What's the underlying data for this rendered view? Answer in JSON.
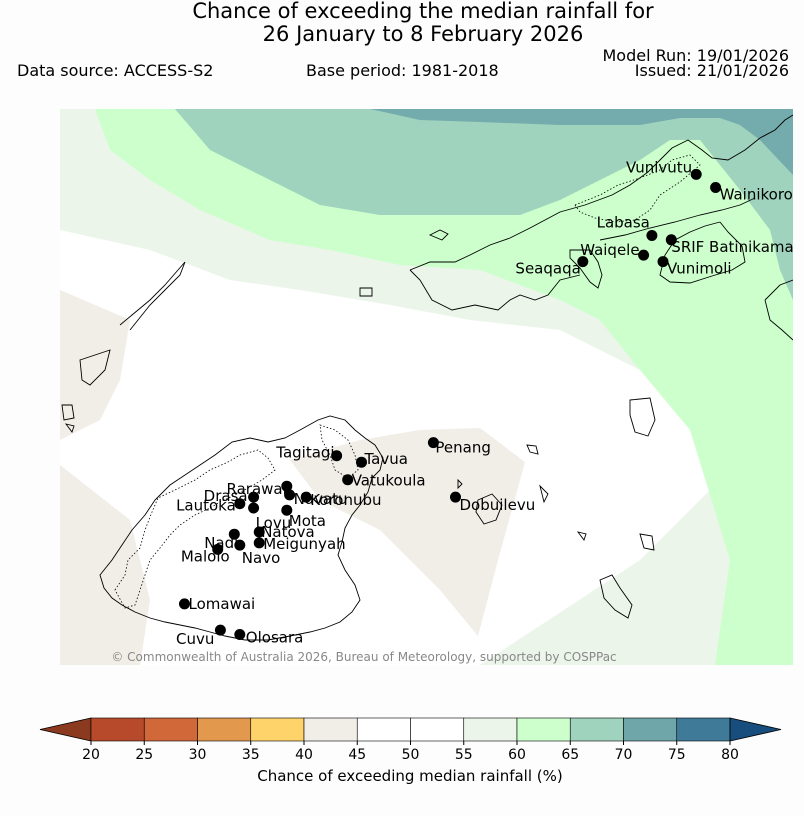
{
  "title": {
    "line1": "Chance of exceeding the median rainfall for",
    "line2": "26 January to 8 February 2026"
  },
  "meta": {
    "data_source": "Data source: ACCESS-S2",
    "base_period": "Base period: 1981-2018",
    "model_run": "Model Run: 19/01/2026",
    "issued": "Issued: 21/01/2026"
  },
  "map": {
    "copyright": "© Commonwealth of Australia 2026, Bureau of Meteorology, supported by COSPPac",
    "places": [
      {
        "name": "Vunivutu",
        "lon": 179.55,
        "lat": -16.1
      },
      {
        "name": "Wainikoro",
        "lon": 179.62,
        "lat": -16.16
      },
      {
        "name": "Labasa",
        "lon": 179.39,
        "lat": -16.38
      },
      {
        "name": "SRIF Batinikama",
        "lon": 179.46,
        "lat": -16.4
      },
      {
        "name": "Waiqele",
        "lon": 179.36,
        "lat": -16.47
      },
      {
        "name": "Vunimoli",
        "lon": 179.43,
        "lat": -16.5
      },
      {
        "name": "Seaqaqa",
        "lon": 179.14,
        "lat": -16.5
      },
      {
        "name": "Tagitagi",
        "lon": 178.25,
        "lat": -17.39
      },
      {
        "name": "Tavua",
        "lon": 178.34,
        "lat": -17.42
      },
      {
        "name": "Penang",
        "lon": 178.6,
        "lat": -17.33
      },
      {
        "name": "Vatukoula",
        "lon": 178.29,
        "lat": -17.5
      },
      {
        "name": "Rarawai",
        "lon": 178.07,
        "lat": -17.53
      },
      {
        "name": "Navatu",
        "lon": 178.08,
        "lat": -17.57
      },
      {
        "name": "Drasa",
        "lon": 177.95,
        "lat": -17.58
      },
      {
        "name": "Koronubu",
        "lon": 178.14,
        "lat": -17.58
      },
      {
        "name": "Dobuilevu",
        "lon": 178.68,
        "lat": -17.58
      },
      {
        "name": "Lautoka",
        "lon": 177.9,
        "lat": -17.61
      },
      {
        "name": "Lovu",
        "lon": 177.95,
        "lat": -17.63
      },
      {
        "name": "Mota",
        "lon": 178.07,
        "lat": -17.64
      },
      {
        "name": "Natova",
        "lon": 177.97,
        "lat": -17.74
      },
      {
        "name": "Nadi",
        "lon": 177.88,
        "lat": -17.75
      },
      {
        "name": "Meigunyah",
        "lon": 177.97,
        "lat": -17.79
      },
      {
        "name": "Malolo",
        "lon": 177.82,
        "lat": -17.82
      },
      {
        "name": "Navo",
        "lon": 177.9,
        "lat": -17.8
      },
      {
        "name": "Lomawai",
        "lon": 177.7,
        "lat": -18.07
      },
      {
        "name": "Cuvu",
        "lon": 177.83,
        "lat": -18.19
      },
      {
        "name": "Olosara",
        "lon": 177.9,
        "lat": -18.21
      }
    ]
  },
  "colorbar": {
    "label": "Chance of exceeding median rainfall (%)",
    "ticks": [
      "20",
      "25",
      "30",
      "35",
      "40",
      "45",
      "50",
      "55",
      "60",
      "65",
      "70",
      "75",
      "80"
    ],
    "colors": [
      "#8b3a1f",
      "#b64a2a",
      "#d0683a",
      "#e2984d",
      "#fdd36a",
      "#f1ede7",
      "#ffffff",
      "#ffffff",
      "#ebf5ea",
      "#ccffcc",
      "#9fd3bd",
      "#6fa6aa",
      "#3f7a99",
      "#174e7d"
    ]
  }
}
